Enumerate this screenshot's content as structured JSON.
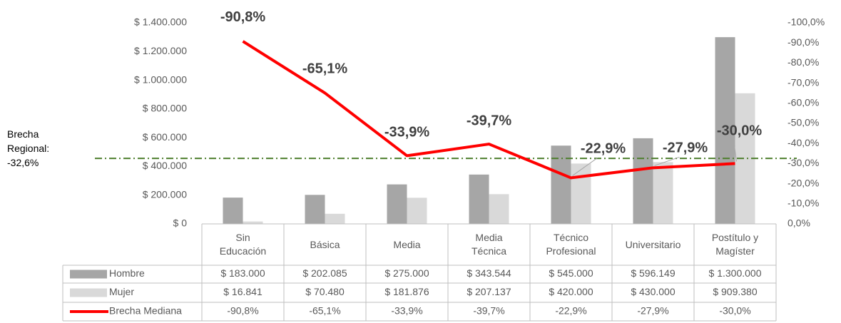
{
  "chart_data": {
    "type": "bar_line_table",
    "categories": [
      "Sin Educación",
      "Básica",
      "Media",
      "Media Técnica",
      "Técnico Profesional",
      "Universitario",
      "Postítulo y Magíster"
    ],
    "series": [
      {
        "name": "Hombre",
        "type": "bar",
        "color": "#a6a6a6",
        "values": [
          183000,
          202085,
          275000,
          343544,
          545000,
          596149,
          1300000
        ],
        "value_labels": [
          "$ 183.000",
          "$ 202.085",
          "$ 275.000",
          "$ 343.544",
          "$ 545.000",
          "$ 596.149",
          "$ 1.300.000"
        ]
      },
      {
        "name": "Mujer",
        "type": "bar",
        "color": "#d9d9d9",
        "values": [
          16841,
          70480,
          181876,
          207137,
          420000,
          430000,
          909380
        ],
        "value_labels": [
          "$ 16.841",
          "$ 70.480",
          "$ 181.876",
          "$ 207.137",
          "$ 420.000",
          "$ 430.000",
          "$ 909.380"
        ]
      },
      {
        "name": "Brecha Mediana",
        "type": "line",
        "axis": "y2",
        "color": "#ff0000",
        "values": [
          -90.8,
          -65.1,
          -33.9,
          -39.7,
          -22.9,
          -27.9,
          -30.0
        ],
        "value_labels": [
          "-90,8%",
          "-65,1%",
          "-33,9%",
          "-39,7%",
          "-22,9%",
          "-27,9%",
          "-30,0%"
        ]
      }
    ],
    "ylim": [
      0,
      1400000
    ],
    "yticks": [
      {
        "value": 0,
        "label": "$ 0"
      },
      {
        "value": 200000,
        "label": "$ 200.000"
      },
      {
        "value": 400000,
        "label": "$ 400.000"
      },
      {
        "value": 600000,
        "label": "$ 600.000"
      },
      {
        "value": 800000,
        "label": "$ 800.000"
      },
      {
        "value": 1000000,
        "label": "$ 1.000.000"
      },
      {
        "value": 1200000,
        "label": "$ 1.200.000"
      },
      {
        "value": 1400000,
        "label": "$ 1.400.000"
      }
    ],
    "y2lim": [
      0,
      -100
    ],
    "y2ticks": [
      {
        "value": 0,
        "label": "0,0%"
      },
      {
        "value": -10,
        "label": "-10,0%"
      },
      {
        "value": -20,
        "label": "-20,0%"
      },
      {
        "value": -30,
        "label": "-30,0%"
      },
      {
        "value": -40,
        "label": "-40,0%"
      },
      {
        "value": -50,
        "label": "-50,0%"
      },
      {
        "value": -60,
        "label": "-60,0%"
      },
      {
        "value": -70,
        "label": "-70,0%"
      },
      {
        "value": -80,
        "label": "-80,0%"
      },
      {
        "value": -90,
        "label": "-90,0%"
      },
      {
        "value": -100,
        "label": "-100,0%"
      }
    ],
    "reference_line": {
      "value": -32.6,
      "axis": "y2",
      "label": "Brecha Regional: -32,6%",
      "color": "#4f7f2f"
    },
    "grid": false,
    "data_table": true
  }
}
